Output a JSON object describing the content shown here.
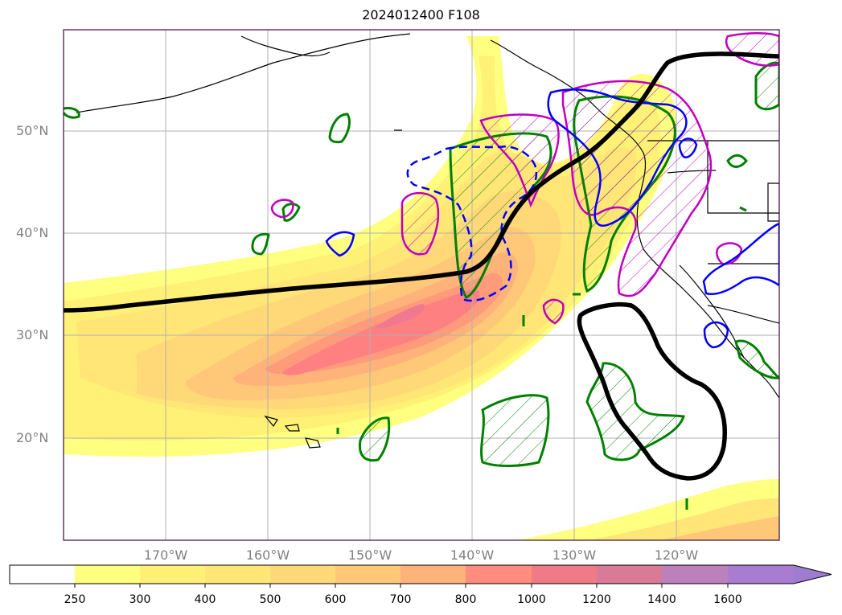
{
  "title": "2024012400 F108",
  "lat_labels": [
    "50°N",
    "40°N",
    "30°N",
    "20°N"
  ],
  "lon_labels": [
    "170°W",
    "160°W",
    "150°W",
    "140°W",
    "130°W",
    "120°W"
  ],
  "colorbar": {
    "levels": [
      "250",
      "300",
      "400",
      "500",
      "600",
      "700",
      "800",
      "1000",
      "1200",
      "1400",
      "1600"
    ],
    "colors": [
      "#ffff80",
      "#fff176",
      "#ffe676",
      "#ffd878",
      "#ffc879",
      "#ffb37a",
      "#ff9a7b",
      "#ff8080",
      "#f07890",
      "#d47aa8",
      "#b880c4",
      "#a07cd0"
    ]
  },
  "colors": {
    "frame": "#3d0a3d",
    "green_contour": "#008000",
    "blue_contour": "#0000ff",
    "magenta_contour": "#c000c0",
    "jet_line": "#000000"
  }
}
